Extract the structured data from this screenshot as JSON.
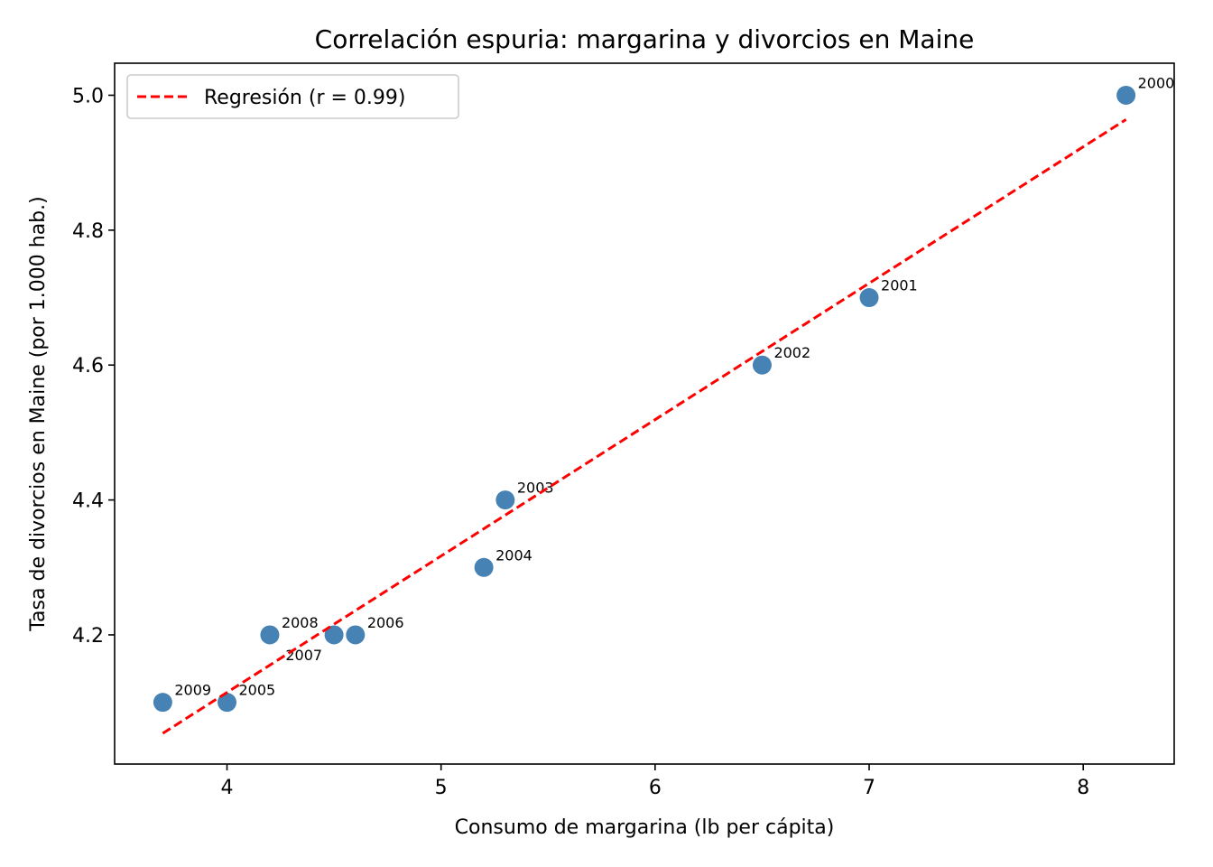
{
  "chart_data": {
    "type": "scatter",
    "title": "Correlación espuria: margarina y divorcios en Maine",
    "xlabel": "Consumo de margarina (lb per cápita)",
    "ylabel": "Tasa de divorcios en Maine (por 1.000 hab.)",
    "xlim": [
      3.475,
      8.425
    ],
    "ylim": [
      4.0085,
      5.0475
    ],
    "xticks": [
      4,
      5,
      6,
      7,
      8
    ],
    "xtick_labels": [
      "4",
      "5",
      "6",
      "7",
      "8"
    ],
    "yticks": [
      4.2,
      4.4,
      4.6,
      4.8,
      5.0
    ],
    "ytick_labels": [
      "4.2",
      "4.4",
      "4.6",
      "4.8",
      "5.0"
    ],
    "grid": false,
    "points": [
      {
        "label": "2000",
        "x": 8.2,
        "y": 5.0
      },
      {
        "label": "2001",
        "x": 7.0,
        "y": 4.7
      },
      {
        "label": "2002",
        "x": 6.5,
        "y": 4.6
      },
      {
        "label": "2003",
        "x": 5.3,
        "y": 4.4
      },
      {
        "label": "2004",
        "x": 5.2,
        "y": 4.3
      },
      {
        "label": "2005",
        "x": 4.0,
        "y": 4.1
      },
      {
        "label": "2006",
        "x": 4.6,
        "y": 4.2
      },
      {
        "label": "2007",
        "x": 4.5,
        "y": 4.2
      },
      {
        "label": "2008",
        "x": 4.2,
        "y": 4.2
      },
      {
        "label": "2009",
        "x": 3.7,
        "y": 4.1
      }
    ],
    "point_color": "#4682b4",
    "regression": {
      "x": [
        3.7,
        8.2
      ],
      "y": [
        4.054,
        4.964
      ],
      "color": "#ff0000",
      "style": "dashed"
    },
    "legend": {
      "entries": [
        "Regresión (r = 0.99)"
      ],
      "placement": "top-left"
    }
  }
}
